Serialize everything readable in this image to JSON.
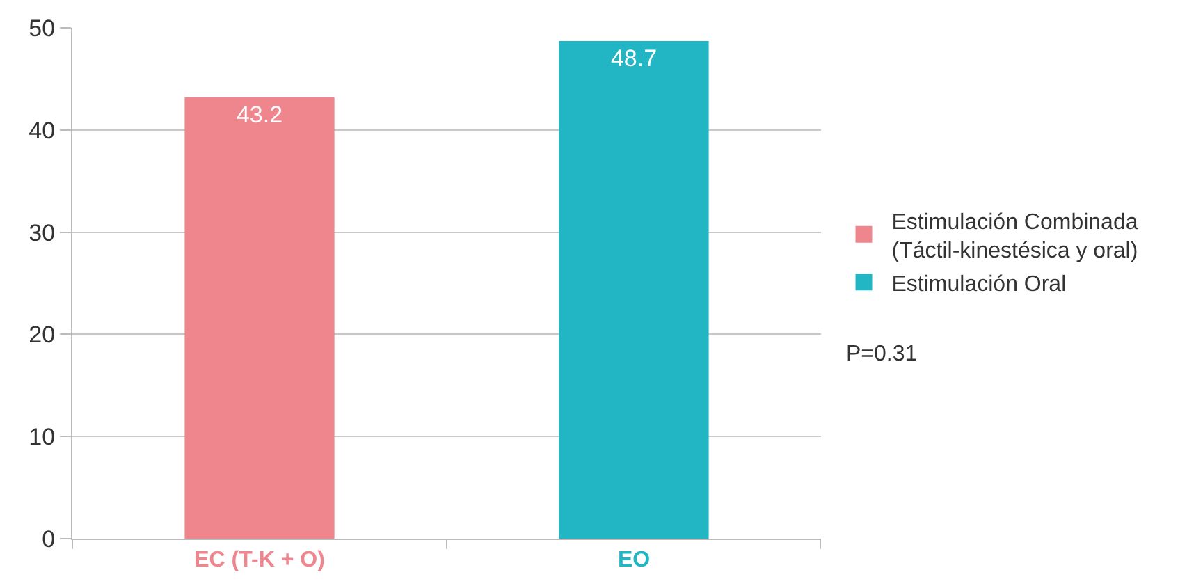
{
  "chart_data": {
    "type": "bar",
    "categories": [
      "EC (T-K + O)",
      "EO"
    ],
    "series": [
      {
        "name": "Estimulación Combinada\n(Táctil-kinestésica y oral)",
        "color": "#ef858d",
        "values": [
          43.2,
          null
        ]
      },
      {
        "name": "Estimulación Oral",
        "color": "#22b5c3",
        "values": [
          null,
          48.7
        ]
      }
    ],
    "ylim": [
      0,
      50
    ],
    "yticks": [
      0,
      10,
      20,
      30,
      40,
      50
    ],
    "grid": "y",
    "legend": "right",
    "data_labels": true,
    "annotations": [
      "P=0.31"
    ]
  }
}
